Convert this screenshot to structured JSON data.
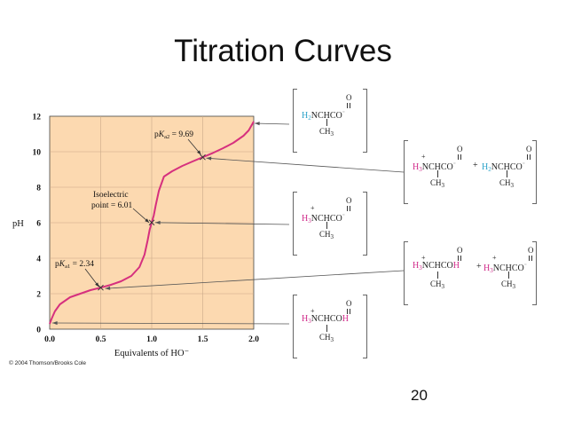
{
  "title": "Titration Curves",
  "page_number": "20",
  "copyright": "© 2004 Thomson/Brooks Cole",
  "chart_data": {
    "type": "line",
    "xlabel": "Equivalents of HO⁻",
    "ylabel": "pH",
    "xlim": [
      0,
      2
    ],
    "ylim": [
      0,
      12
    ],
    "x_ticks": [
      "0.0",
      "0.5",
      "1.0",
      "1.5",
      "2.0"
    ],
    "y_ticks": [
      "0",
      "2",
      "4",
      "6",
      "8",
      "10",
      "12"
    ],
    "grid": true,
    "background": "#fcd9b0",
    "line_color": "#d6307e",
    "series": [
      {
        "x": [
          0.0,
          0.02,
          0.05,
          0.1,
          0.2,
          0.3,
          0.4,
          0.5,
          0.6,
          0.7,
          0.8,
          0.88,
          0.93,
          0.96,
          0.98,
          1.0,
          1.02,
          1.04,
          1.07,
          1.12,
          1.2,
          1.3,
          1.4,
          1.5,
          1.6,
          1.7,
          1.8,
          1.9,
          1.95,
          2.0
        ],
        "y": [
          0.3,
          0.6,
          1.0,
          1.4,
          1.8,
          2.0,
          2.2,
          2.34,
          2.5,
          2.7,
          3.0,
          3.5,
          4.2,
          5.0,
          5.6,
          6.01,
          6.4,
          7.0,
          7.8,
          8.6,
          8.9,
          9.2,
          9.45,
          9.69,
          9.93,
          10.2,
          10.5,
          10.9,
          11.2,
          11.7
        ]
      }
    ],
    "annotations": [
      {
        "label": "pKa1 = 2.34",
        "x": 0.5,
        "y": 2.34
      },
      {
        "label_line1": "Isoelectric",
        "label_line2": "point = 6.01",
        "x": 1.0,
        "y": 6.01
      },
      {
        "label": "pKa2 = 9.69",
        "x": 1.5,
        "y": 9.69
      }
    ]
  },
  "structures": {
    "s_top": {
      "charge": "",
      "left": "H2",
      "mid": "NCHCO",
      "tail": "⁻",
      "left_color": "cyan"
    },
    "s_mid": {
      "charge": "+",
      "left": "H3",
      "mid": "NCHCO",
      "tail": "⁻",
      "left_color": "pink"
    },
    "s_bot": {
      "charge": "+",
      "left": "H3",
      "mid": "NCHCO",
      "tail": "H",
      "left_color": "pink"
    },
    "pair_high": {
      "a": {
        "charge": "+",
        "left": "H3",
        "mid": "NCHCO",
        "tail": "⁻",
        "left_color": "pink"
      },
      "b": {
        "charge": "",
        "left": "H2",
        "mid": "NCHCO",
        "tail": "⁻",
        "left_color": "cyan"
      }
    },
    "pair_low": {
      "a": {
        "charge": "+",
        "left": "H3",
        "mid": "NCHCOH",
        "tail": "",
        "left_color": "pink"
      },
      "b": {
        "charge": "+",
        "left": "H3",
        "mid": "NCHCO",
        "tail": "⁻",
        "left_color": "pink"
      }
    },
    "plus_sign": "+",
    "O": "O",
    "CH3": "CH3"
  }
}
